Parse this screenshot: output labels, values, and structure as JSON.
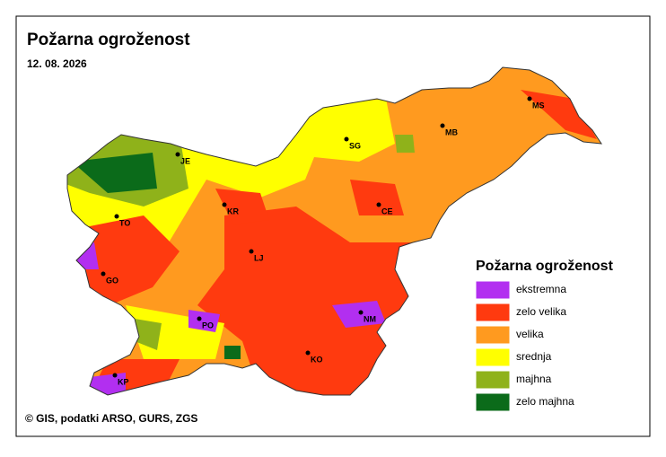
{
  "title": "Požarna ogroženost",
  "date": "12. 08. 2026",
  "legend": {
    "title": "Požarna ogroženost",
    "items": [
      {
        "label": "ekstremna",
        "color": "#b22ff0"
      },
      {
        "label": "zelo velika",
        "color": "#ff3a0f"
      },
      {
        "label": "velika",
        "color": "#ff9a1f"
      },
      {
        "label": "srednja",
        "color": "#ffff00"
      },
      {
        "label": "majhna",
        "color": "#8fb21a"
      },
      {
        "label": "zelo majhna",
        "color": "#0b6b1a"
      }
    ]
  },
  "cities": [
    "MS",
    "MB",
    "SG",
    "JE",
    "CE",
    "KR",
    "TO",
    "LJ",
    "GO",
    "NM",
    "PO",
    "KO",
    "KP"
  ],
  "copyright": "© GIS, podatki ARSO, GURS, ZGS"
}
